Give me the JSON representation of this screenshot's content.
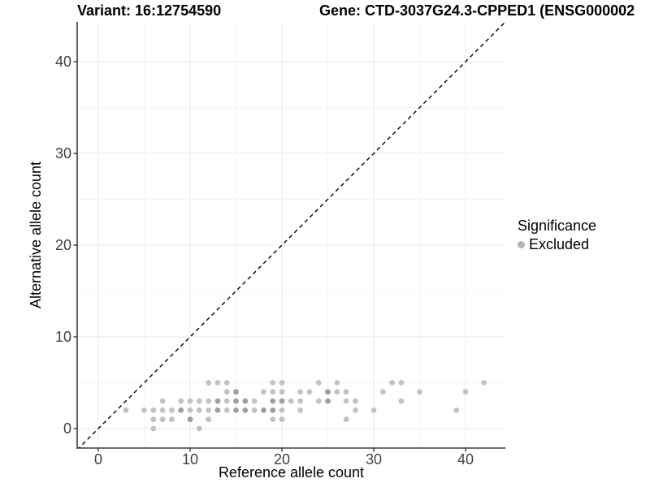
{
  "chart_data": {
    "type": "scatter",
    "title_left": "Variant: 16:12754590",
    "title_right": "Gene: CTD-3037G24.3-CPPED1 (ENSG000002",
    "xlabel": "Reference allele count",
    "ylabel": "Alternative allele count",
    "x_ticks": [
      0,
      10,
      20,
      30,
      40
    ],
    "y_ticks": [
      0,
      10,
      20,
      30,
      40
    ],
    "minor_x": [
      5,
      15,
      25,
      35
    ],
    "minor_y": [
      5,
      15,
      25,
      35
    ],
    "xlim": [
      -2.3,
      44.3
    ],
    "ylim": [
      -2.3,
      44.3
    ],
    "grid": "major+minor",
    "identity_line": {
      "type": "abline",
      "slope": 1,
      "intercept": 0,
      "style": "dashed",
      "color": "#000000"
    },
    "legend": {
      "title": "Significance",
      "position": "right",
      "items": [
        {
          "label": "Excluded",
          "color": "#b4b4b4"
        }
      ]
    },
    "colors": {
      "point_light": "#c2c2c2",
      "point_dark": "#9f9f9f",
      "grid_major": "#e9e9e9",
      "grid_minor": "#f4f4f4",
      "axis_line": "#383838",
      "tick_text": "#404040",
      "title_text": "#000000"
    },
    "points_format": "[reference_allele_count, alternative_allele_count, shade(1=light,2=dark)]",
    "points": [
      [
        6,
        0,
        1
      ],
      [
        11,
        0,
        1
      ],
      [
        6,
        1,
        1
      ],
      [
        7,
        1,
        1
      ],
      [
        8,
        1,
        1
      ],
      [
        10,
        1,
        2
      ],
      [
        12,
        1,
        1
      ],
      [
        19,
        1,
        1
      ],
      [
        20,
        1,
        1
      ],
      [
        27,
        1,
        1
      ],
      [
        3,
        2,
        1
      ],
      [
        5,
        2,
        1
      ],
      [
        6,
        2,
        1
      ],
      [
        7,
        2,
        1
      ],
      [
        8,
        2,
        1
      ],
      [
        9,
        2,
        2
      ],
      [
        10,
        2,
        1
      ],
      [
        11,
        2,
        1
      ],
      [
        12,
        2,
        1
      ],
      [
        13,
        2,
        2
      ],
      [
        14,
        2,
        1
      ],
      [
        15,
        2,
        2
      ],
      [
        16,
        2,
        2
      ],
      [
        17,
        2,
        1
      ],
      [
        18,
        2,
        2
      ],
      [
        19,
        2,
        2
      ],
      [
        20,
        2,
        1
      ],
      [
        22,
        2,
        1
      ],
      [
        28,
        2,
        1
      ],
      [
        30,
        2,
        1
      ],
      [
        39,
        2,
        1
      ],
      [
        7,
        3,
        1
      ],
      [
        9,
        3,
        1
      ],
      [
        10,
        3,
        1
      ],
      [
        11,
        3,
        1
      ],
      [
        12,
        3,
        1
      ],
      [
        13,
        3,
        2
      ],
      [
        14,
        3,
        1
      ],
      [
        15,
        3,
        2
      ],
      [
        16,
        3,
        2
      ],
      [
        17,
        3,
        1
      ],
      [
        19,
        3,
        2
      ],
      [
        20,
        3,
        2
      ],
      [
        21,
        3,
        1
      ],
      [
        22,
        3,
        1
      ],
      [
        24,
        3,
        1
      ],
      [
        25,
        3,
        2
      ],
      [
        27,
        3,
        1
      ],
      [
        28,
        3,
        1
      ],
      [
        33,
        3,
        1
      ],
      [
        14,
        4,
        1
      ],
      [
        15,
        4,
        2
      ],
      [
        18,
        4,
        1
      ],
      [
        19,
        4,
        1
      ],
      [
        20,
        4,
        1
      ],
      [
        22,
        4,
        1
      ],
      [
        23,
        4,
        1
      ],
      [
        25,
        4,
        2
      ],
      [
        26,
        4,
        1
      ],
      [
        27,
        4,
        1
      ],
      [
        31,
        4,
        1
      ],
      [
        35,
        4,
        1
      ],
      [
        40,
        4,
        1
      ],
      [
        12,
        5,
        1
      ],
      [
        13,
        5,
        1
      ],
      [
        14,
        5,
        1
      ],
      [
        19,
        5,
        1
      ],
      [
        20,
        5,
        1
      ],
      [
        24,
        5,
        1
      ],
      [
        26,
        5,
        1
      ],
      [
        32,
        5,
        1
      ],
      [
        33,
        5,
        1
      ],
      [
        42,
        5,
        1
      ]
    ]
  }
}
